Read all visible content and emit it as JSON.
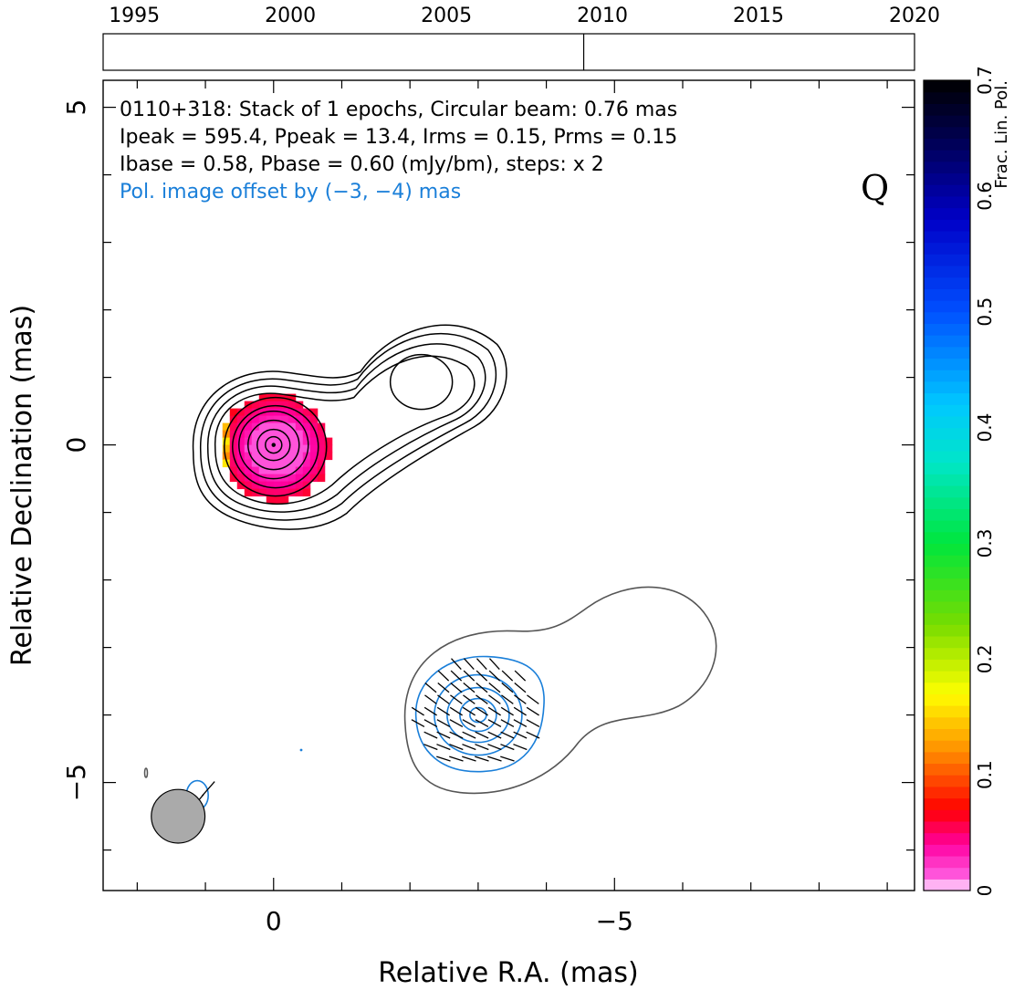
{
  "chart_data": {
    "type": "contour",
    "source": "0110+318",
    "timeline": {
      "tick_labels": [
        "1995",
        "2000",
        "2005",
        "2010",
        "2015",
        "2020"
      ],
      "range": [
        1994,
        2020
      ],
      "epoch_marker": 2009.4
    },
    "annotations": {
      "line1": "0110+318: Stack of 1 epochs, Circular beam: 0.76 mas",
      "line2": "Ipeak = 595.4, Ppeak = 13.4, Irms = 0.15, Prms = 0.15",
      "line3": "Ibase = 0.58, Pbase = 0.60 (mJy/bm), steps: x 2",
      "line4": "Pol. image offset by (−3, −4) mas",
      "optical_class": "Q"
    },
    "xlabel": "Relative R.A. (mas)",
    "ylabel": "Relative Declination (mas)",
    "xlim": [
      2.5,
      -9.4
    ],
    "ylim": [
      -6.6,
      5.4
    ],
    "xticks": [
      {
        "v": 0,
        "label": "0"
      },
      {
        "v": -5,
        "label": "−5"
      }
    ],
    "yticks": [
      {
        "v": 5,
        "label": "5"
      },
      {
        "v": 0,
        "label": "0"
      },
      {
        "v": -5,
        "label": "−5"
      }
    ],
    "beam": {
      "x": 1.4,
      "y": -5.5,
      "diameter_mas": 0.76
    },
    "colorbar": {
      "label": "Frac. Lin. Pol.",
      "range": [
        0,
        0.7
      ],
      "tick_labels": [
        "0",
        "0.1",
        "0.2",
        "0.3",
        "0.4",
        "0.5",
        "0.6",
        "0.7"
      ]
    },
    "total_intensity": {
      "color": "#000000",
      "core": {
        "x": 0,
        "y": 0
      },
      "jet_knot": {
        "x": -2.1,
        "y": 1.0
      }
    },
    "polarization": {
      "color": "#1a7fd9",
      "outer_contour_color": "#555555",
      "center": {
        "x": -3,
        "y": -4
      }
    }
  }
}
